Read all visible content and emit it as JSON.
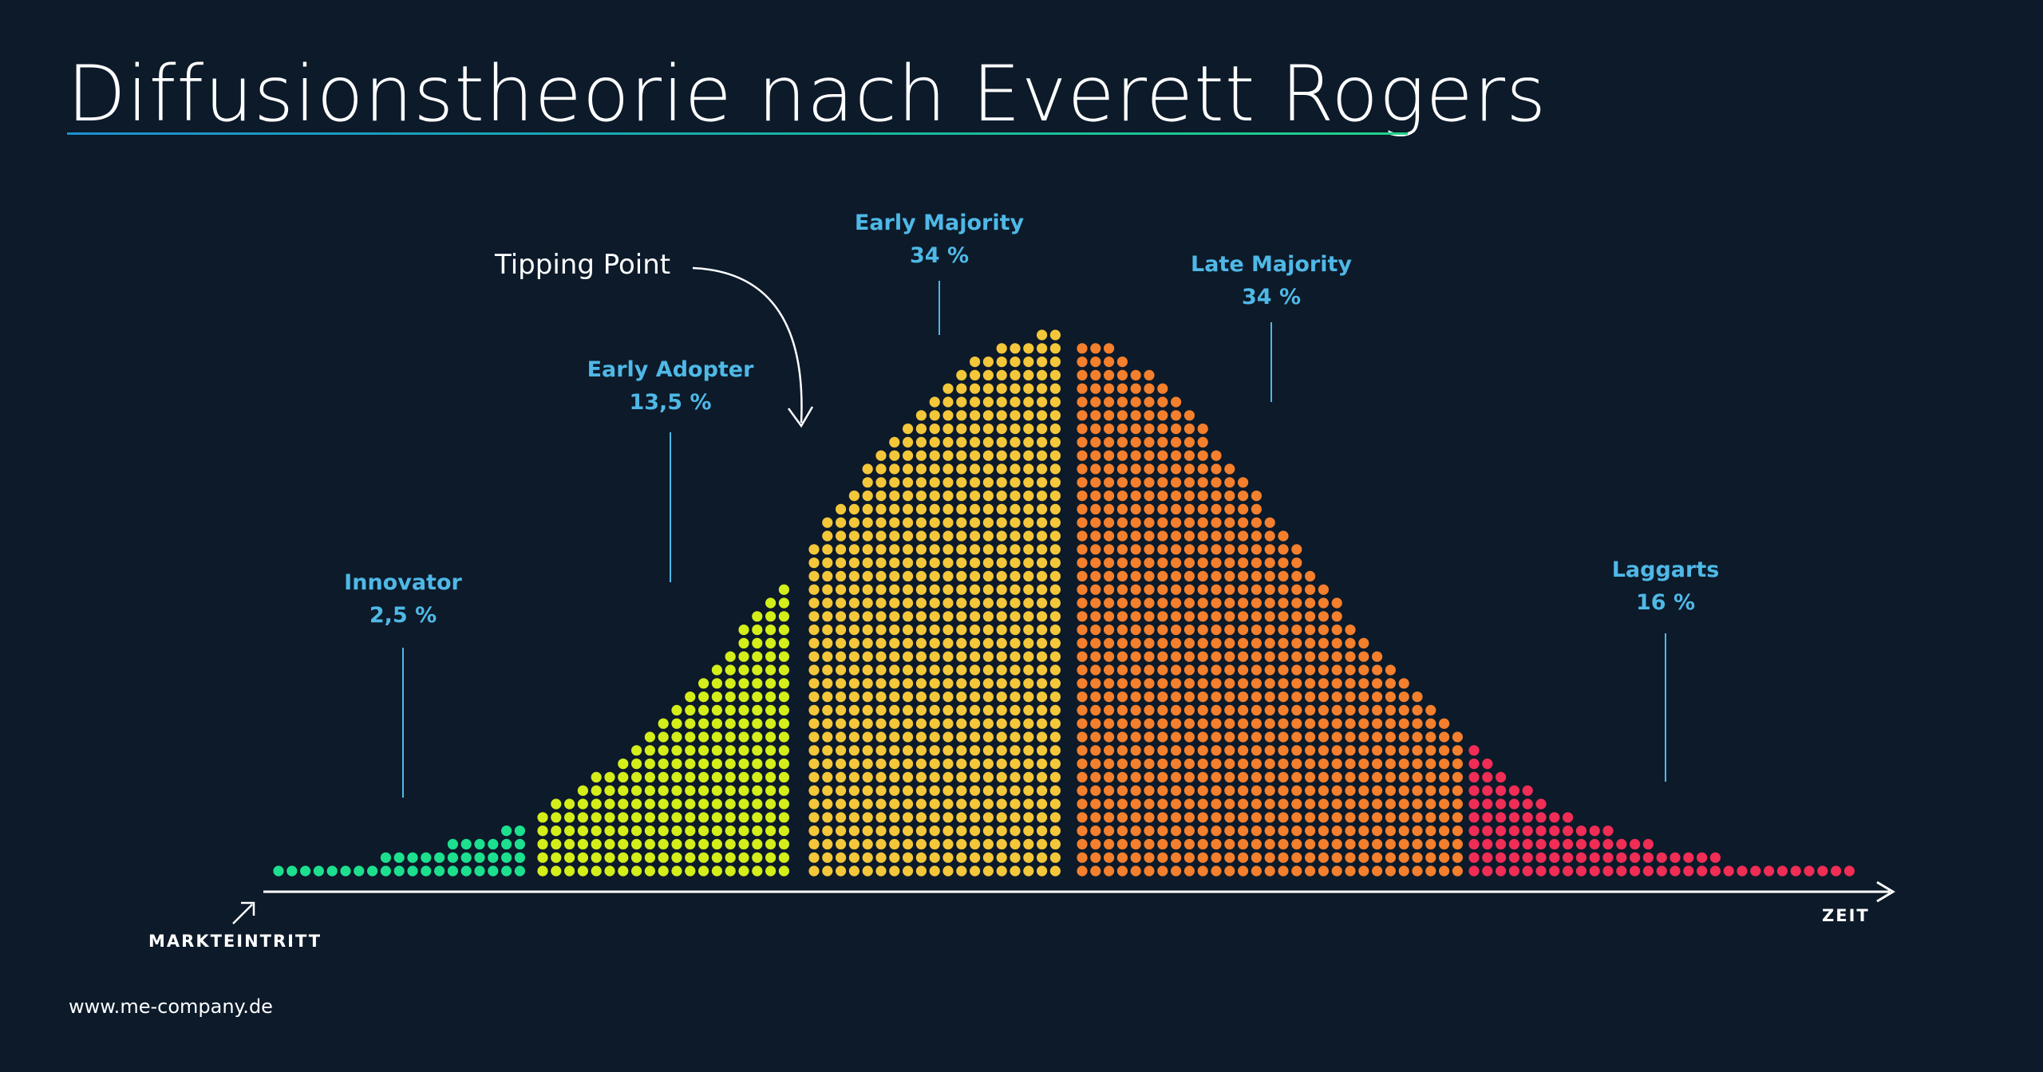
{
  "title": "Diffusionstheorie nach Everett Rogers",
  "tipping_point": "Tipping Point",
  "axis": {
    "start_label": "MARKTEINTRITT",
    "end_label": "ZEIT"
  },
  "footer": "www.me-company.de",
  "segments": [
    {
      "name": "Innovator",
      "share": "2,5 %",
      "color": "#1de08f"
    },
    {
      "name": "Early Adopter",
      "share": "13,5 %",
      "color": "#d4ee1a"
    },
    {
      "name": "Early Majority",
      "share": "34 %",
      "color": "#f4c73a"
    },
    {
      "name": "Late Majority",
      "share": "34 %",
      "color": "#f47f2c"
    },
    {
      "name": "Laggarts",
      "share": "16 %",
      "color": "#f02d55"
    }
  ],
  "colors": {
    "background": "#0c1a2a",
    "label": "#4fb8e6",
    "text": "#ffffff"
  }
}
